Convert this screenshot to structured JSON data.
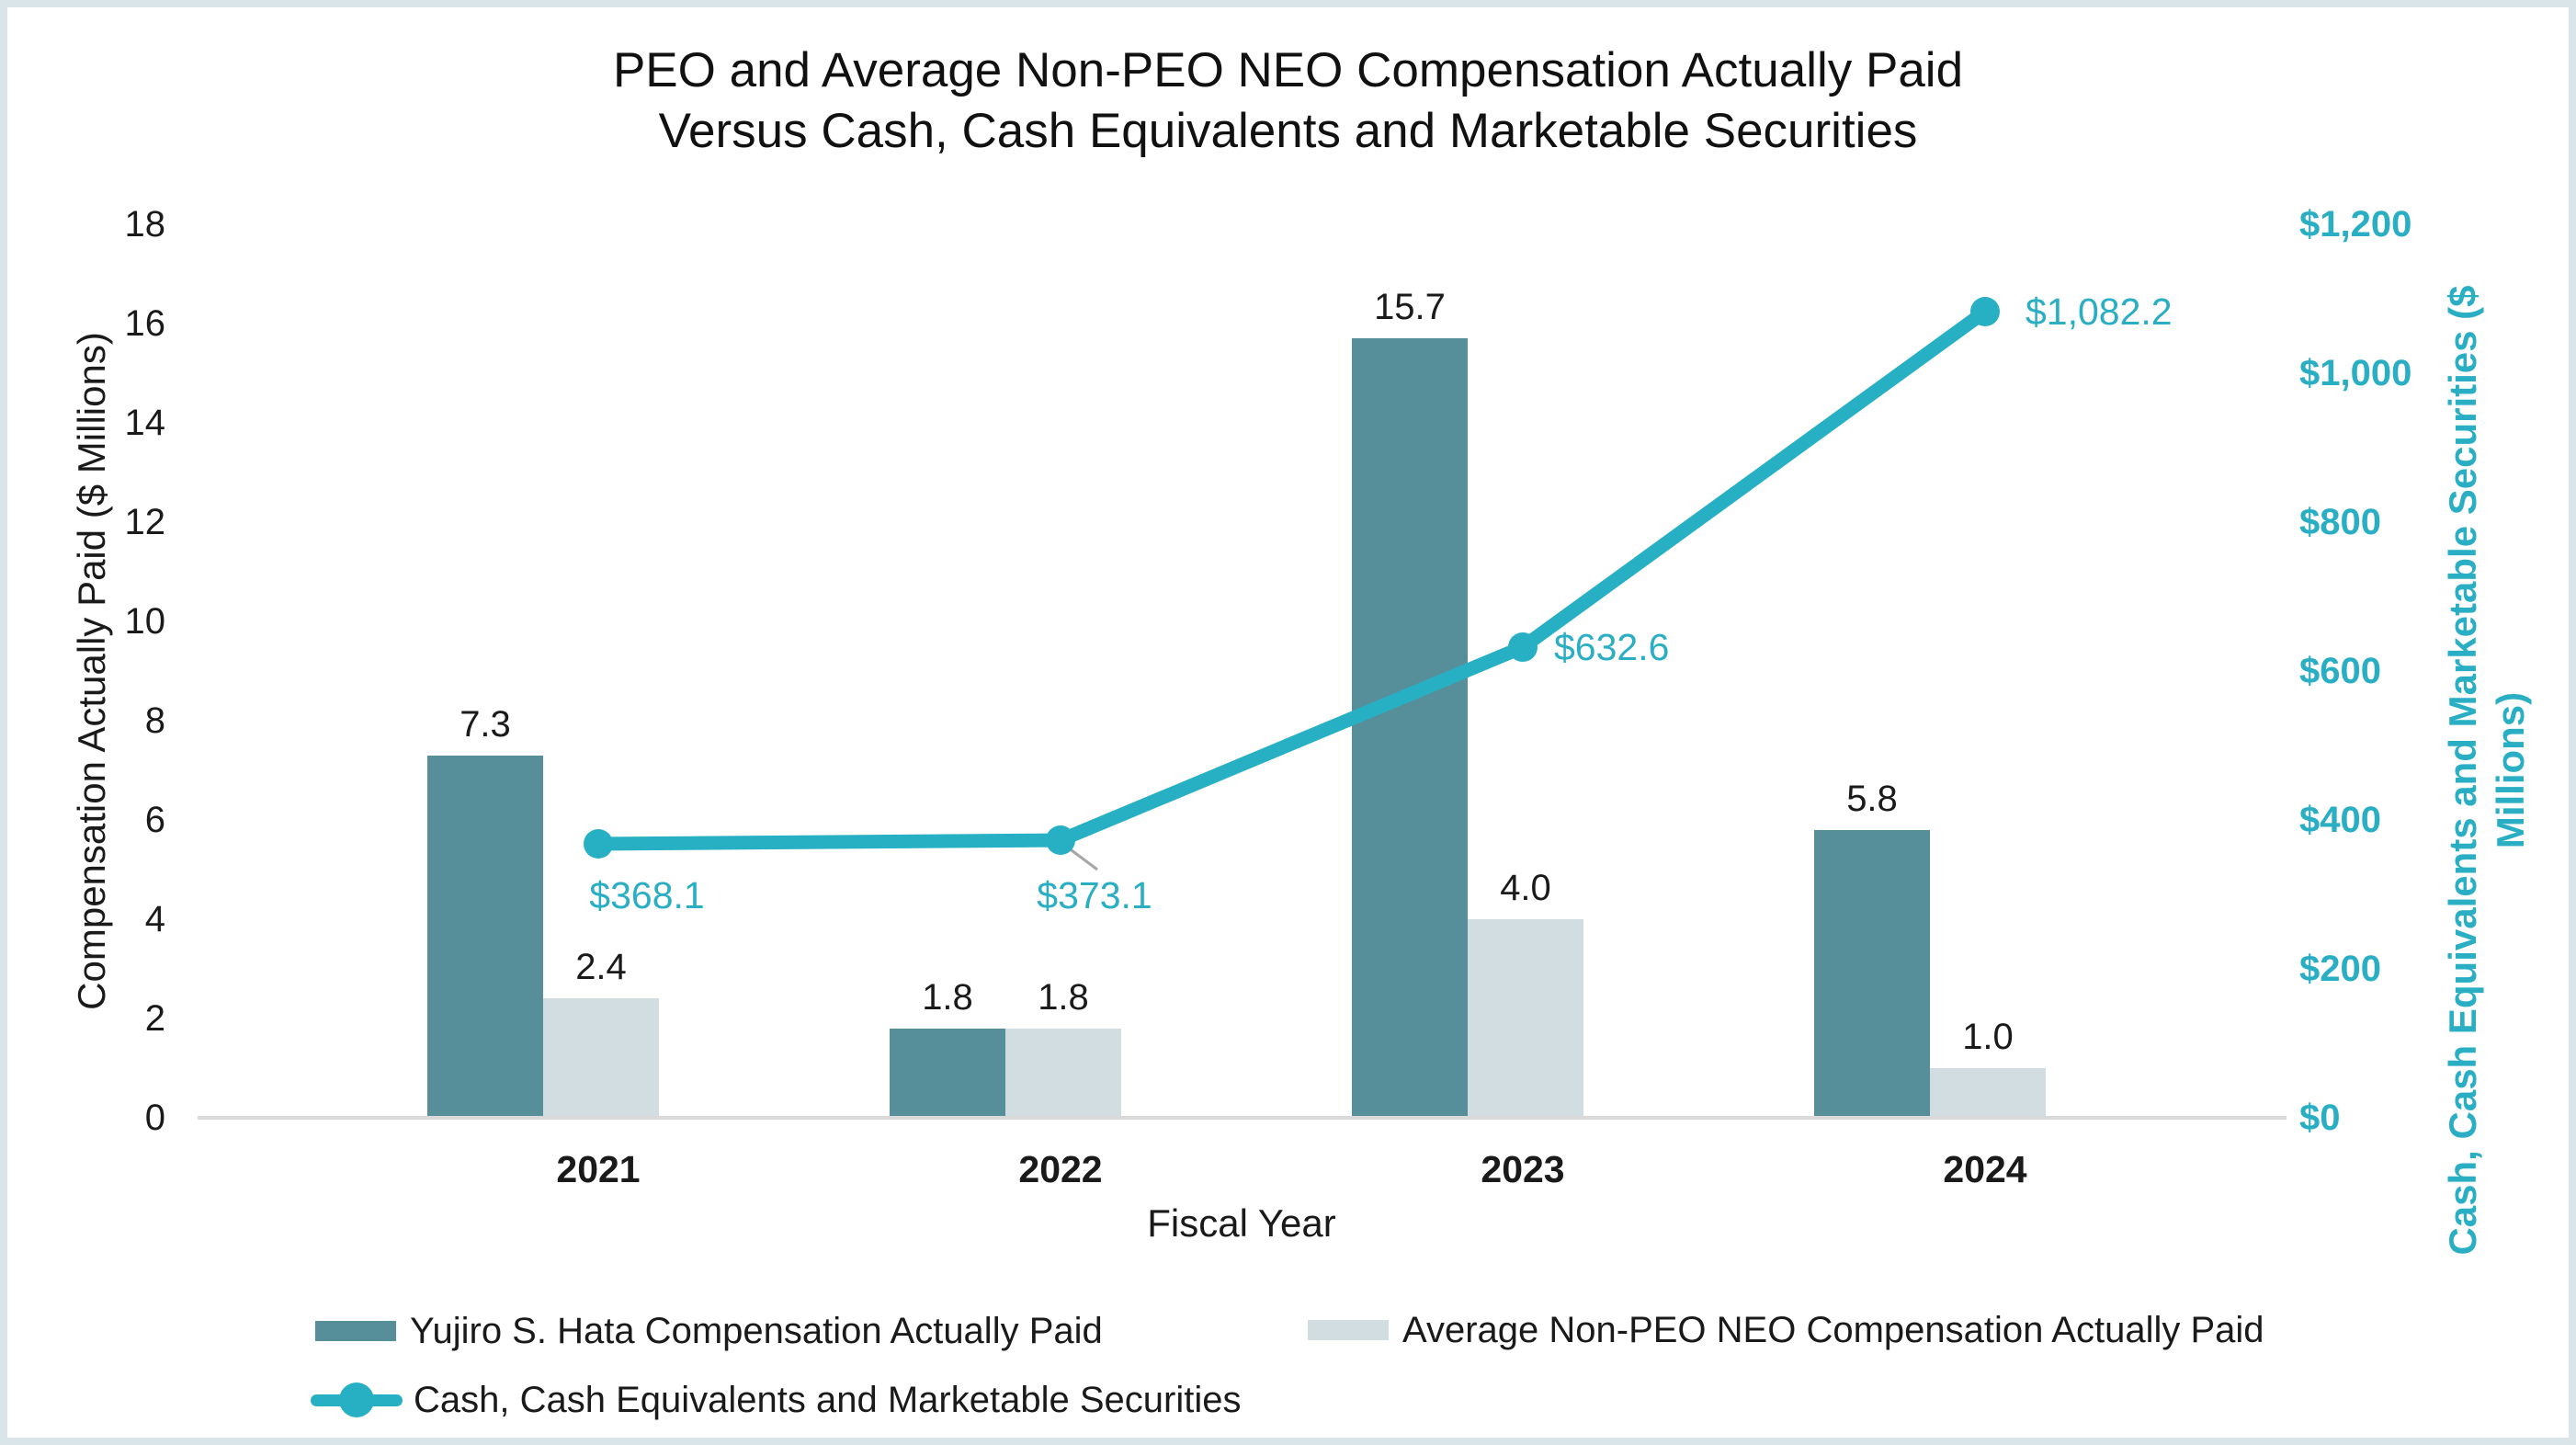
{
  "title": {
    "line1": "PEO and Average Non-PEO NEO Compensation Actually Paid",
    "line2": "Versus Cash, Cash Equivalents and Marketable Securities"
  },
  "colors": {
    "peo_bar": "#568f99",
    "neo_bar": "#d2dde1",
    "cash_line": "#27b0c4",
    "teal_text": "#2aaec3",
    "axis_line": "#d9d9d9",
    "leader_line": "#a6a6a6",
    "frame_border": "#dae5e9",
    "text": "#1a1a1a"
  },
  "chart_data": {
    "type": "bar+line combo",
    "categories": [
      "2021",
      "2022",
      "2023",
      "2024"
    ],
    "series": [
      {
        "name": "Yujiro S. Hata Compensation Actually Paid",
        "type": "bar",
        "axis": "left",
        "values": [
          7.3,
          1.8,
          15.7,
          5.8
        ],
        "labels": [
          "7.3",
          "1.8",
          "15.7",
          "5.8"
        ]
      },
      {
        "name": "Average Non-PEO NEO Compensation Actually Paid",
        "type": "bar",
        "axis": "left",
        "values": [
          2.4,
          1.8,
          4.0,
          1.0
        ],
        "labels": [
          "2.4",
          "1.8",
          "4.0",
          "1.0"
        ]
      },
      {
        "name": "Cash, Cash Equivalents and Marketable Securities",
        "type": "line",
        "axis": "right",
        "values": [
          368.1,
          373.1,
          632.6,
          1082.2
        ],
        "labels": [
          "$368.1",
          "$373.1",
          "$632.6",
          "$1,082.2"
        ]
      }
    ],
    "x_axis": {
      "title": "Fiscal Year"
    },
    "left_axis": {
      "title": "Compensation Actually Paid ($ Millions)",
      "min": 0,
      "max": 18,
      "step": 2,
      "tick_labels": [
        "0",
        "2",
        "4",
        "6",
        "8",
        "10",
        "12",
        "14",
        "16",
        "18"
      ]
    },
    "right_axis": {
      "title_line1": "Cash, Cash Equivalents and Marketable Securities ($",
      "title_line2": "Millions)",
      "min": 0,
      "max": 1200,
      "step": 200,
      "tick_labels": [
        "$0",
        "$200",
        "$400",
        "$600",
        "$800",
        "$1,000",
        "$1,200"
      ]
    },
    "grid": false,
    "legend_position": "bottom-left, two rows"
  }
}
